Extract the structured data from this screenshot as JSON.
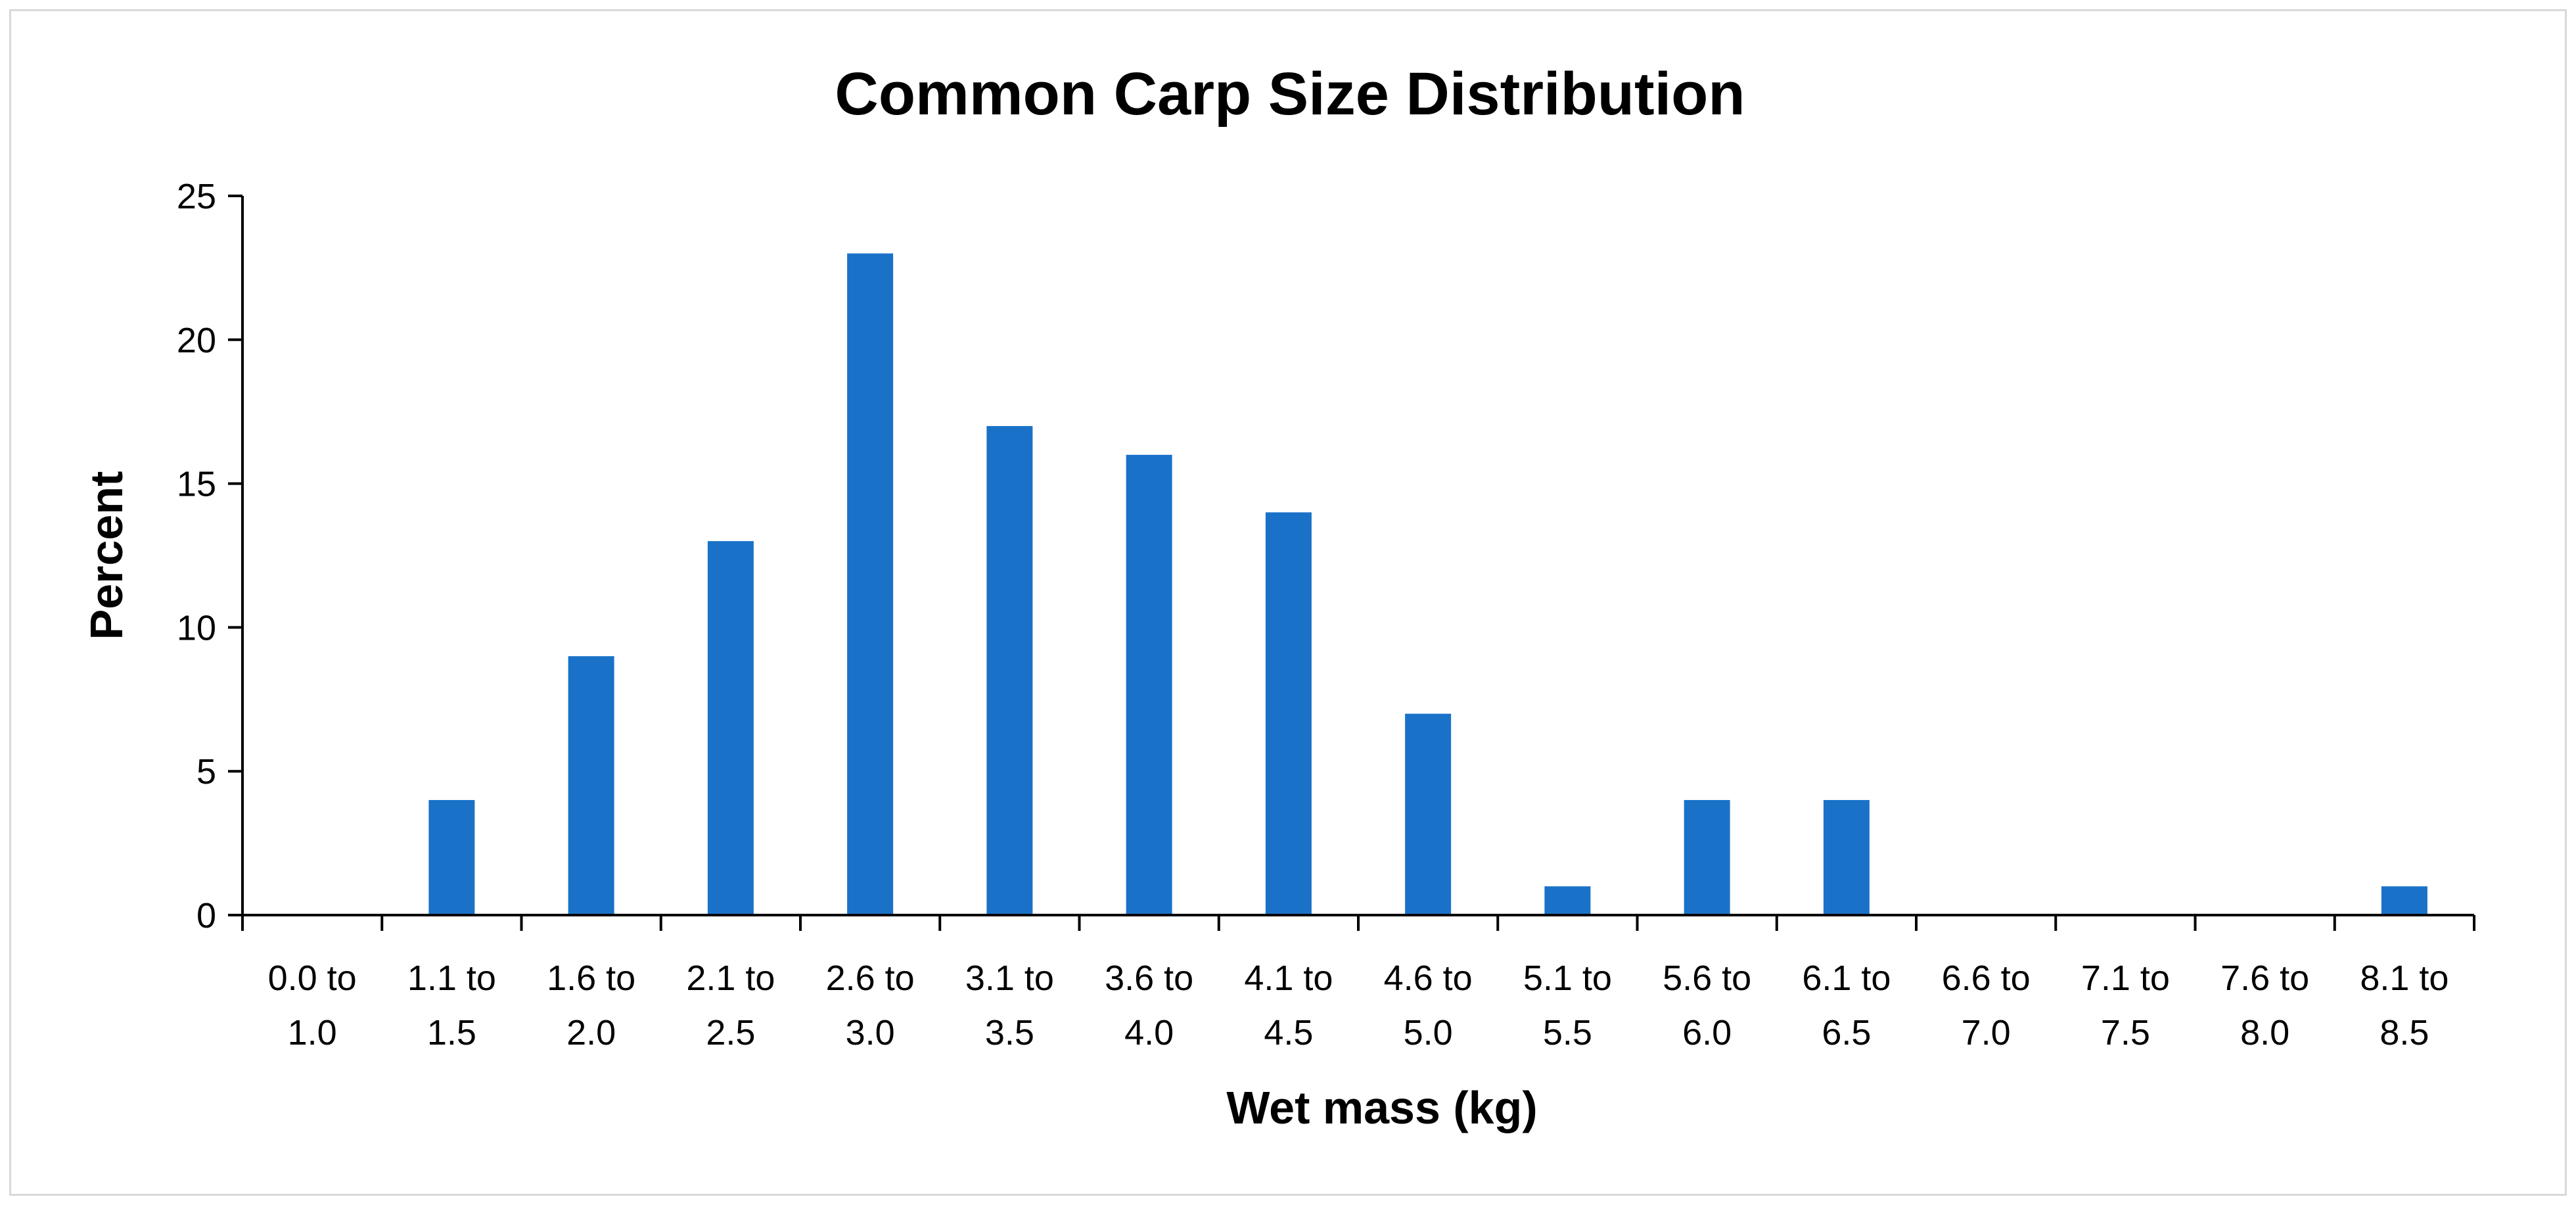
{
  "chart_data": {
    "type": "bar",
    "title": "Common Carp Size Distribution",
    "xlabel": "Wet mass (kg)",
    "ylabel": "Percent",
    "ylim": [
      0,
      25
    ],
    "yticks": [
      "0",
      "5",
      "10",
      "15",
      "20",
      "25"
    ],
    "grid": false,
    "legend": "none",
    "bar_color": "#1a72c8",
    "axis_color": "#000000",
    "categories": [
      [
        "0.0 to",
        "1.0"
      ],
      [
        "1.1 to",
        "1.5"
      ],
      [
        "1.6 to",
        "2.0"
      ],
      [
        "2.1 to",
        "2.5"
      ],
      [
        "2.6 to",
        "3.0"
      ],
      [
        "3.1 to",
        "3.5"
      ],
      [
        "3.6 to",
        "4.0"
      ],
      [
        "4.1 to",
        "4.5"
      ],
      [
        "4.6 to",
        "5.0"
      ],
      [
        "5.1 to",
        "5.5"
      ],
      [
        "5.6 to",
        "6.0"
      ],
      [
        "6.1 to",
        "6.5"
      ],
      [
        "6.6 to",
        "7.0"
      ],
      [
        "7.1 to",
        "7.5"
      ],
      [
        "7.6 to",
        "8.0"
      ],
      [
        "8.1 to",
        "8.5"
      ]
    ],
    "values": [
      0,
      4,
      9,
      13,
      23,
      17,
      16,
      14,
      7,
      1,
      4,
      4,
      0,
      0,
      0,
      1
    ]
  }
}
